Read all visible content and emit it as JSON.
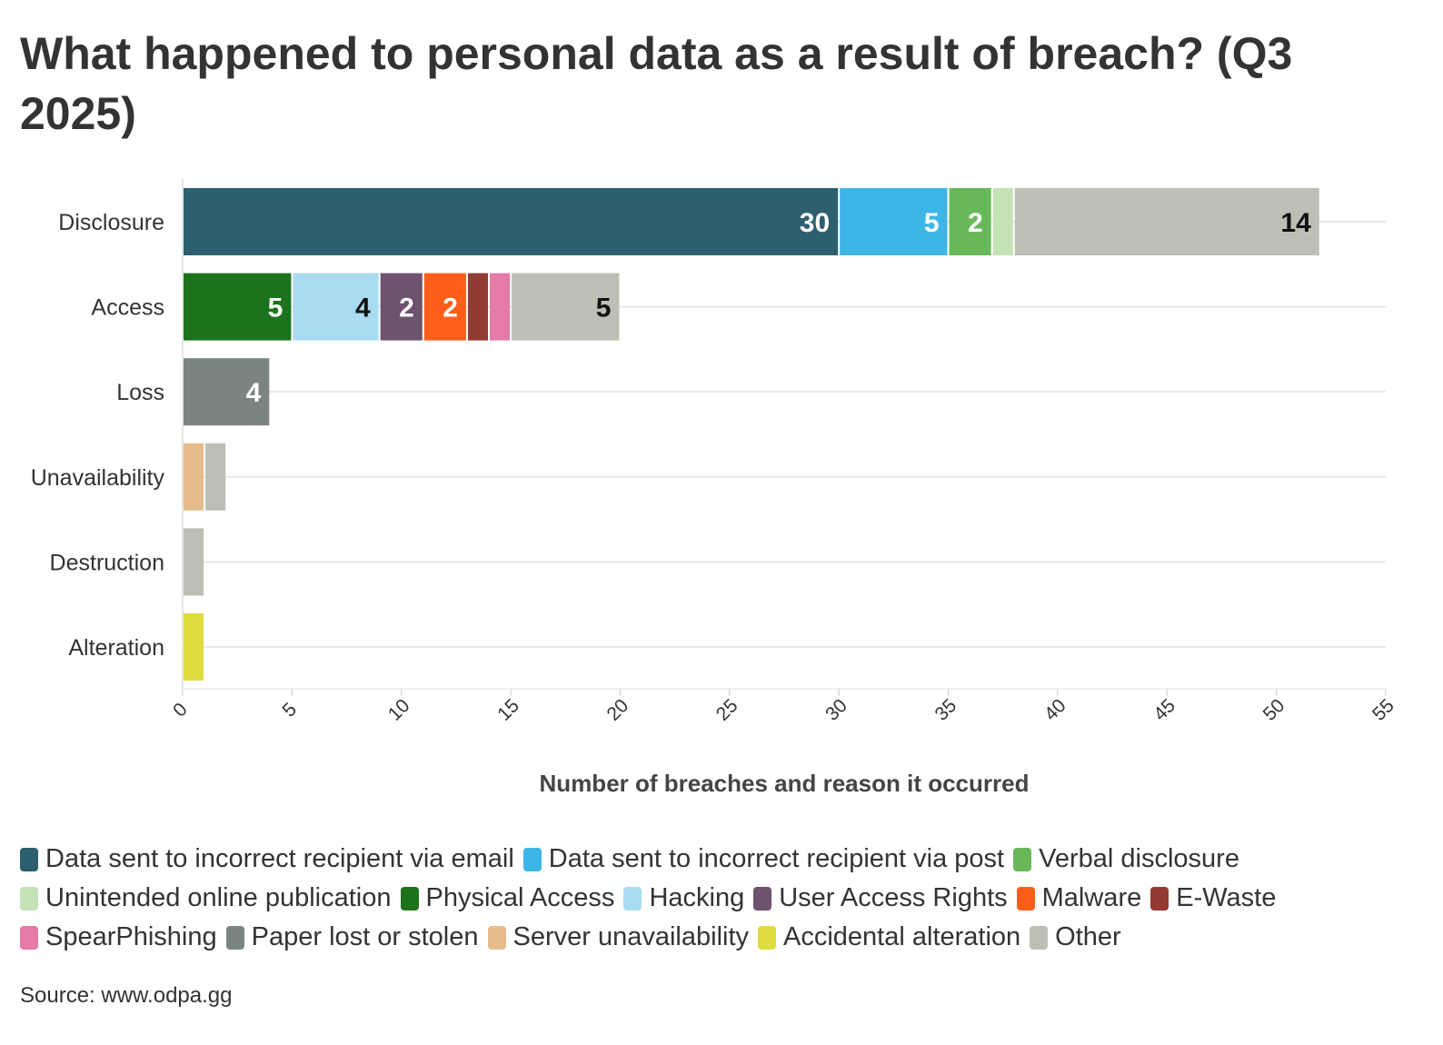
{
  "chart_data": {
    "type": "bar",
    "orientation": "horizontal",
    "stacked": true,
    "title": "What happened to personal data as a result of breach? (Q3 2025)",
    "xlabel": "Number of breaches and reason it occurred",
    "ylabel": "",
    "xlim": [
      0,
      55
    ],
    "xticks": [
      0,
      5,
      10,
      15,
      20,
      25,
      30,
      35,
      40,
      45,
      50,
      55
    ],
    "grid": true,
    "legend_position": "bottom",
    "categories": [
      "Disclosure",
      "Access",
      "Loss",
      "Unavailability",
      "Destruction",
      "Alteration"
    ],
    "series": [
      {
        "name": "Data sent to incorrect recipient via email",
        "color": "#2e5f6e",
        "values": [
          30,
          0,
          0,
          0,
          0,
          0
        ]
      },
      {
        "name": "Data sent to incorrect recipient via post",
        "color": "#3db6e6",
        "values": [
          5,
          0,
          0,
          0,
          0,
          0
        ]
      },
      {
        "name": "Verbal disclosure",
        "color": "#68b85a",
        "values": [
          2,
          0,
          0,
          0,
          0,
          0
        ]
      },
      {
        "name": "Unintended online publication",
        "color": "#c3e2b5",
        "values": [
          1,
          0,
          0,
          0,
          0,
          0
        ]
      },
      {
        "name": "Physical Access",
        "color": "#1c731c",
        "values": [
          0,
          5,
          0,
          0,
          0,
          0
        ]
      },
      {
        "name": "Hacking",
        "color": "#a9dbf1",
        "values": [
          0,
          4,
          0,
          0,
          0,
          0
        ]
      },
      {
        "name": "User Access Rights",
        "color": "#6e526e",
        "values": [
          0,
          2,
          0,
          0,
          0,
          0
        ]
      },
      {
        "name": "Malware",
        "color": "#ff5e1a",
        "values": [
          0,
          2,
          0,
          0,
          0,
          0
        ]
      },
      {
        "name": "E-Waste",
        "color": "#933a33",
        "values": [
          0,
          1,
          0,
          0,
          0,
          0
        ]
      },
      {
        "name": "SpearPhishing",
        "color": "#e57aa6",
        "values": [
          0,
          1,
          0,
          0,
          0,
          0
        ]
      },
      {
        "name": "Paper lost or stolen",
        "color": "#7b8580",
        "values": [
          0,
          0,
          4,
          0,
          0,
          0
        ]
      },
      {
        "name": "Server unavailability",
        "color": "#e6bb8b",
        "values": [
          0,
          0,
          0,
          1,
          0,
          0
        ]
      },
      {
        "name": "Accidental alteration",
        "color": "#dedc3e",
        "values": [
          0,
          0,
          0,
          0,
          0,
          1
        ]
      },
      {
        "name": "Other",
        "color": "#bebfb4",
        "values": [
          14,
          5,
          0,
          1,
          1,
          0
        ]
      }
    ]
  },
  "source": "Source: www.odpa.gg"
}
